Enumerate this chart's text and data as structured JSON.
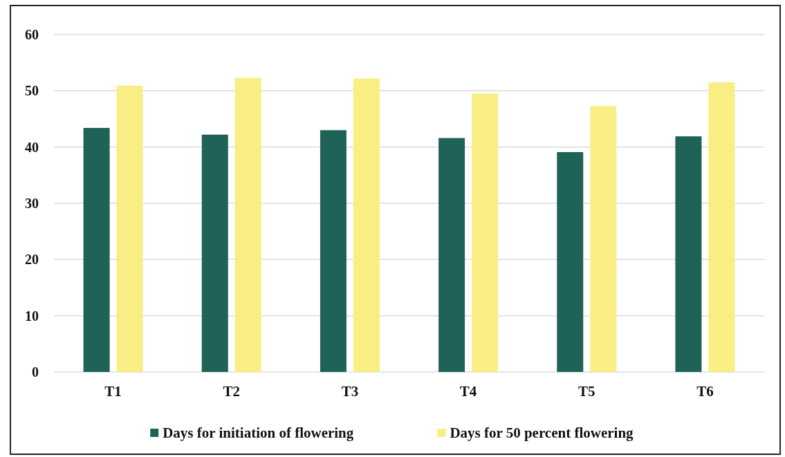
{
  "chart_data": {
    "type": "bar",
    "categories": [
      "T1",
      "T2",
      "T3",
      "T4",
      "T5",
      "T6"
    ],
    "series": [
      {
        "name": "Days for initiation of flowering",
        "color": "#1f6257",
        "values": [
          43.4,
          42.2,
          43.0,
          41.6,
          39.1,
          41.9
        ]
      },
      {
        "name": "Days for 50 percent flowering",
        "color": "#f8ee84",
        "values": [
          50.9,
          52.3,
          52.2,
          49.5,
          47.3,
          51.5
        ]
      }
    ],
    "ylim": [
      0,
      60
    ],
    "yticks": [
      0,
      10,
      20,
      30,
      40,
      50,
      60
    ],
    "grid": "y",
    "legend": "bottom"
  }
}
